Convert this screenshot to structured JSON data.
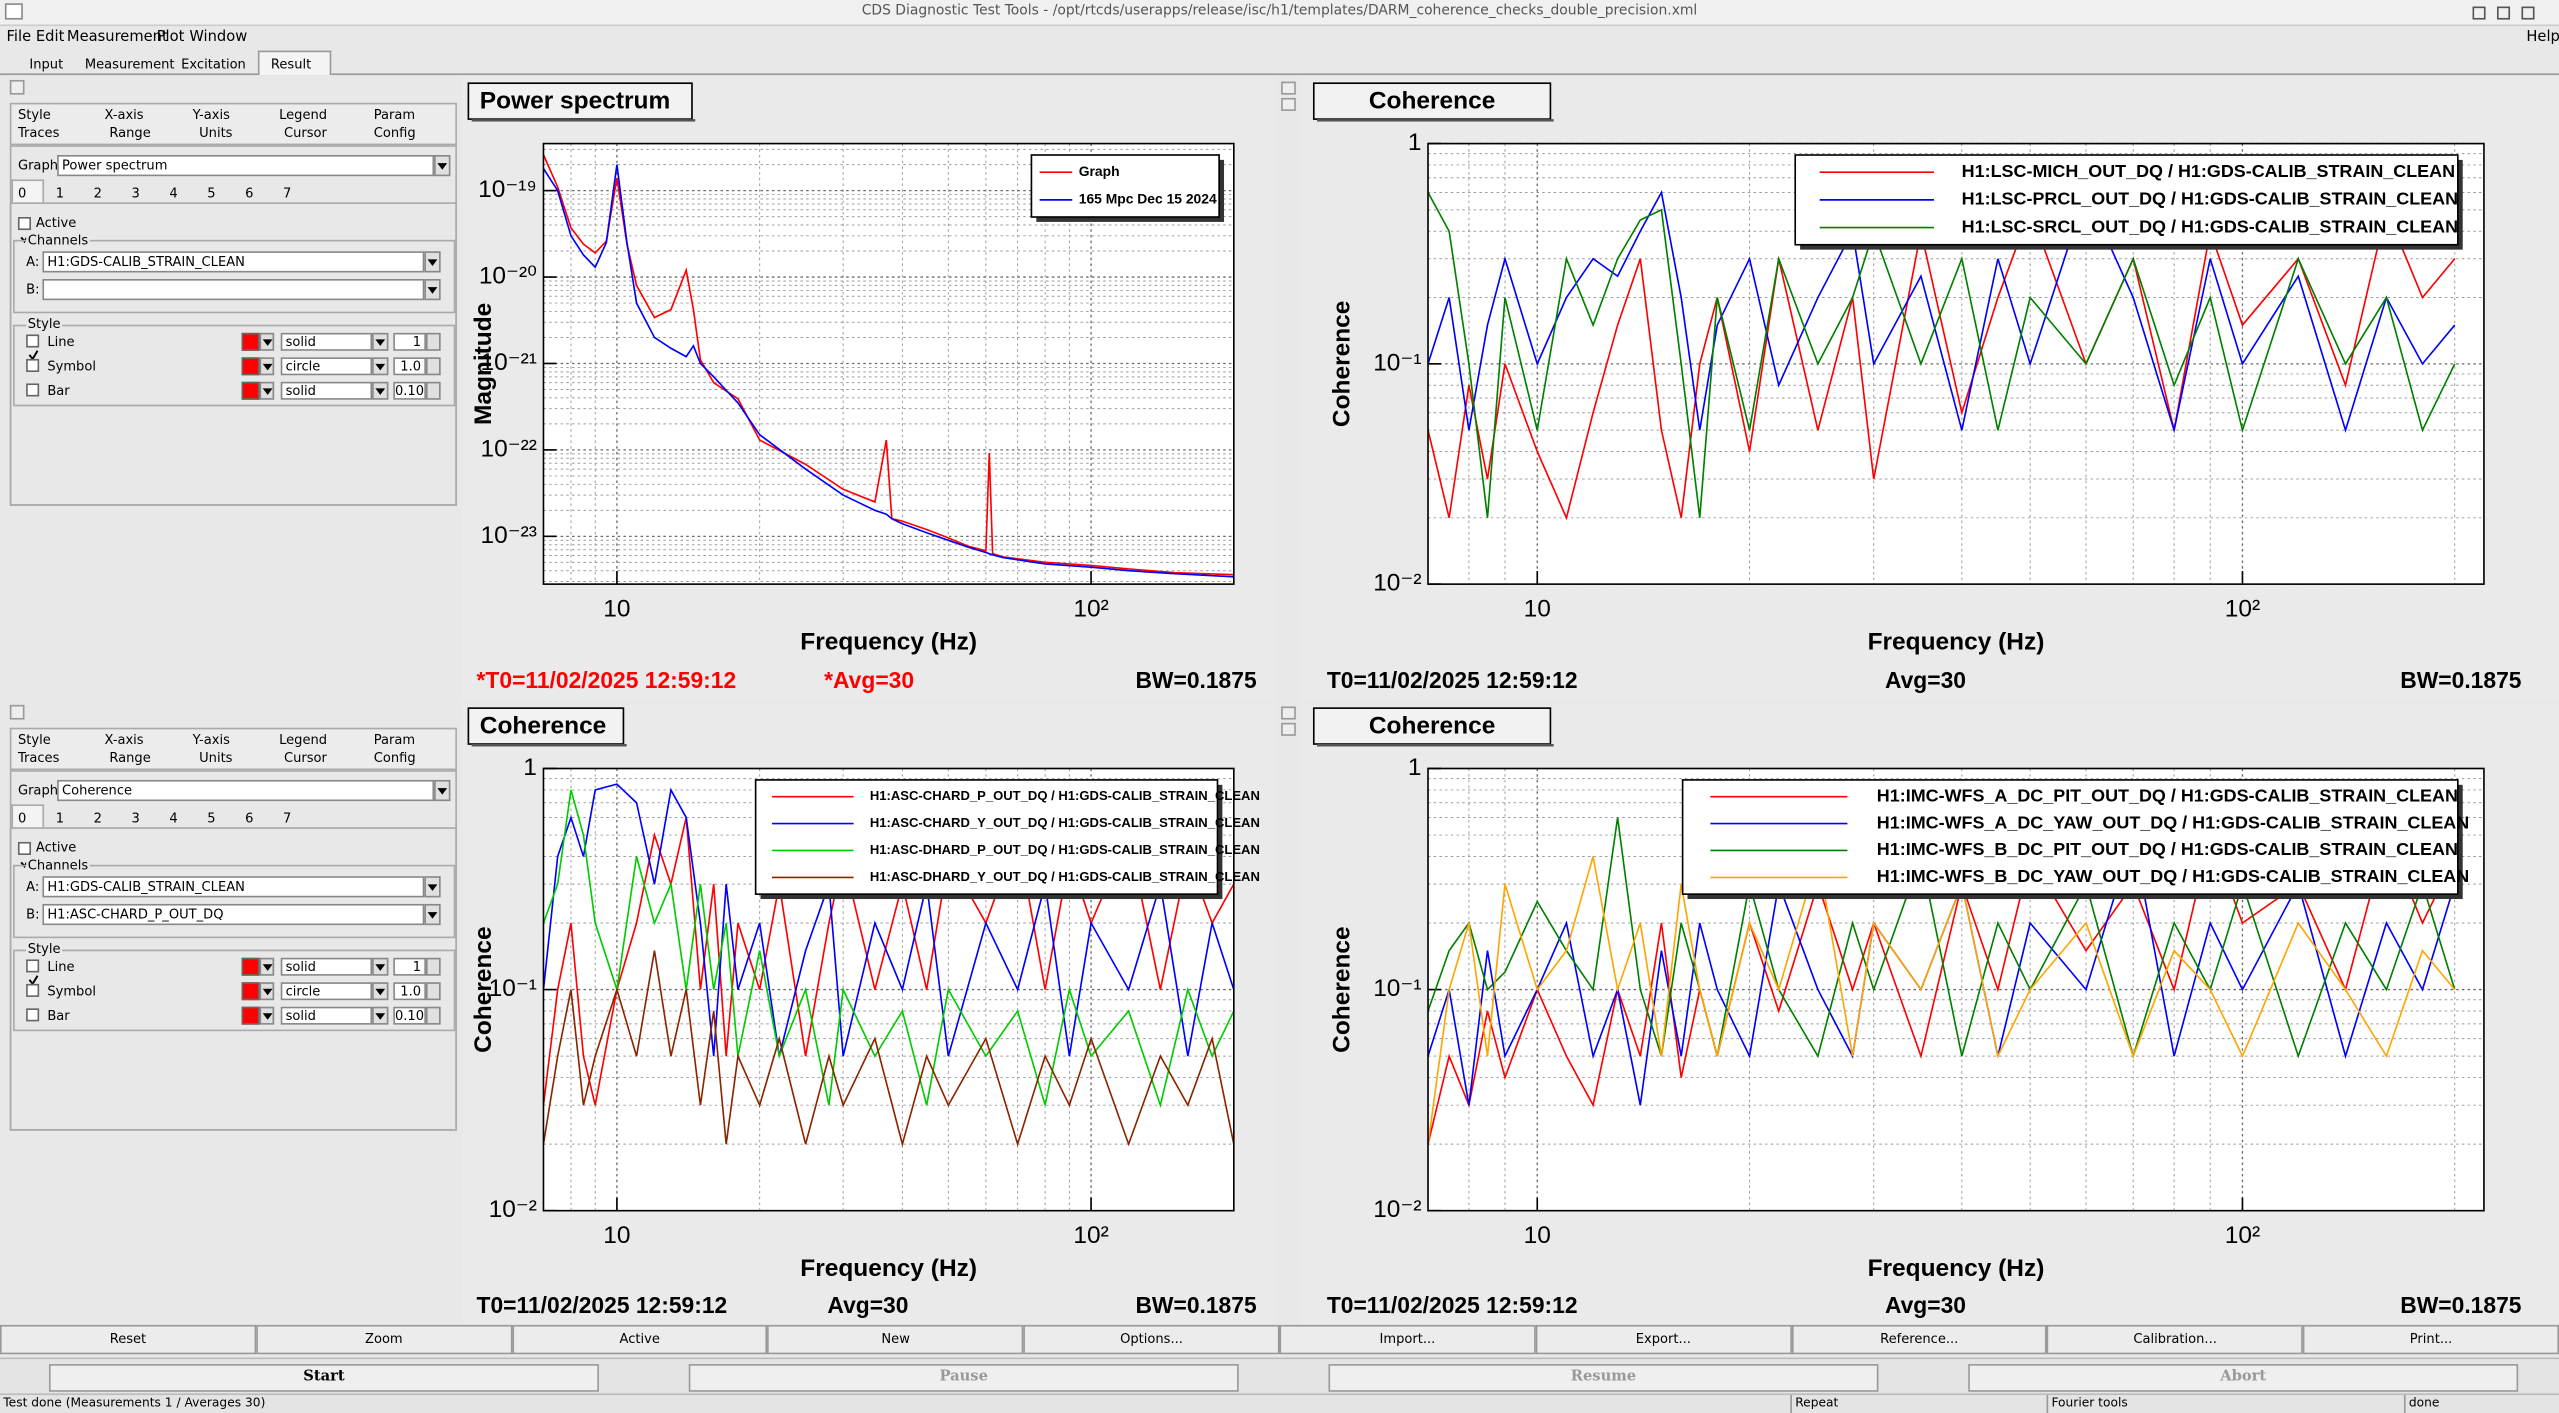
{
  "window_title": "CDS Diagnostic Test Tools - /opt/rtcds/userapps/release/isc/h1/templates/DARM_coherence_checks_double_precision.xml",
  "menu": [
    "File",
    "Edit",
    "Measurement",
    "Plot",
    "Window"
  ],
  "help_menu": "Help",
  "main_tabs": [
    "Input",
    "Measurement",
    "Excitation",
    "Result"
  ],
  "option_panels": [
    {
      "tabs_top": [
        "Style",
        "X-axis",
        "Y-axis",
        "Legend",
        "Param"
      ],
      "tabs_bottom": [
        "Traces",
        "Range",
        "Units",
        "Cursor",
        "Config"
      ],
      "graph_label": "Graph:",
      "graph": "Power spectrum",
      "trace_tabs": [
        0,
        1,
        2,
        3,
        4,
        5,
        6,
        7
      ],
      "active": "Active",
      "channels": "Channels",
      "channel_a_label": "A:",
      "channel_a": "H1:GDS-CALIB_STRAIN_CLEAN",
      "channel_b_label": "B:",
      "style_group": "Style",
      "style_rows": [
        {
          "name": "Line",
          "style": "solid",
          "size": "1",
          "checked": true
        },
        {
          "name": "Symbol",
          "style": "circle",
          "size": "1.0",
          "checked": false
        },
        {
          "name": "Bar",
          "style": "solid",
          "size": "0.10",
          "checked": false
        }
      ]
    },
    {
      "tabs_top": [
        "Style",
        "X-axis",
        "Y-axis",
        "Legend",
        "Param"
      ],
      "tabs_bottom": [
        "Traces",
        "Range",
        "Units",
        "Cursor",
        "Config"
      ],
      "graph_label": "Graph:",
      "graph": "Coherence",
      "trace_tabs": [
        0,
        1,
        2,
        3,
        4,
        5,
        6,
        7
      ],
      "active": "Active",
      "channels": "Channels",
      "channel_a_label": "A:",
      "channel_a": "H1:GDS-CALIB_STRAIN_CLEAN",
      "channel_b_label": "B:",
      "channel_b": "H1:ASC-CHARD_P_OUT_DQ",
      "style_group": "Style",
      "style_rows": [
        {
          "name": "Line",
          "style": "solid",
          "size": "1",
          "checked": true
        },
        {
          "name": "Symbol",
          "style": "circle",
          "size": "1.0",
          "checked": false
        },
        {
          "name": "Bar",
          "style": "solid",
          "size": "0.10",
          "checked": false
        }
      ]
    }
  ],
  "chart_data": [
    {
      "type": "line",
      "title": "Power spectrum",
      "xlabel": "Frequency (Hz)",
      "ylabel": "Magnitude",
      "xlog": true,
      "ylog": true,
      "grid": true,
      "legend": "upper right",
      "xlim": [
        7,
        200
      ],
      "ylim": [
        2.8e-24,
        3.5e-19
      ],
      "xticks": [
        10,
        {
          "value": 100,
          "label": "10²"
        }
      ],
      "yticks": [
        {
          "value": 1e-19,
          "label": "10⁻¹⁹"
        },
        {
          "value": 1e-20,
          "label": "10⁻²⁰"
        },
        {
          "value": 1e-21,
          "label": "10⁻²¹"
        },
        {
          "value": 1e-22,
          "label": "10⁻²²"
        },
        {
          "value": 1e-23,
          "label": "10⁻²³"
        }
      ],
      "x": [
        7,
        7.5,
        8,
        8.5,
        9,
        9.5,
        10,
        10.5,
        11,
        12,
        13,
        14,
        14.5,
        15,
        16,
        18,
        20,
        25,
        30,
        35,
        37,
        38,
        40,
        45,
        50,
        55,
        60,
        61,
        62,
        65,
        80,
        100,
        120,
        150,
        200
      ],
      "series": [
        {
          "name": "Graph",
          "color": "#ff0000",
          "values": [
            2.6e-19,
            1.1e-19,
            3.7e-20,
            2.4e-20,
            1.9e-20,
            2.6e-20,
            1.4e-19,
            2.4e-20,
            8e-21,
            3.4e-21,
            4.2e-21,
            1.2e-20,
            4.2e-21,
            1.1e-21,
            6e-22,
            3.9e-22,
            1.3e-22,
            6.8e-23,
            3.5e-23,
            2.5e-23,
            1.3e-22,
            1.6e-23,
            1.5e-23,
            1.2e-23,
            9.6e-24,
            7.7e-24,
            6.8e-24,
            9.2e-23,
            6.3e-24,
            5.8e-24,
            5e-24,
            4.6e-24,
            4.2e-24,
            3.8e-24,
            3.6e-24
          ]
        },
        {
          "name": "165 Mpc Dec 15 2024",
          "color": "#0000ff",
          "values": [
            1.8e-19,
            1e-19,
            3e-20,
            1.8e-20,
            1.3e-20,
            2.5e-20,
            2e-19,
            2.5e-20,
            5e-21,
            2e-21,
            1.5e-21,
            1.2e-21,
            1.6e-21,
            1e-21,
            7e-22,
            3.5e-22,
            1.5e-22,
            6e-23,
            3e-23,
            2e-23,
            1.8e-23,
            1.6e-23,
            1.4e-23,
            1.1e-23,
            9e-24,
            7.5e-24,
            6.5e-24,
            6.3e-24,
            6.1e-24,
            5.7e-24,
            4.8e-24,
            4.4e-24,
            4e-24,
            3.7e-24,
            3.4e-24
          ]
        }
      ],
      "footer_t0": "*T0=11/02/2025 12:59:12",
      "footer_avg": "*Avg=30",
      "footer_bw": "BW=0.1875",
      "footer_color": "#ff0000"
    },
    {
      "type": "line",
      "title": "Coherence",
      "xlabel": "Frequency (Hz)",
      "ylabel": "Coherence",
      "xlog": true,
      "ylog": true,
      "grid": true,
      "legend": "upper right",
      "xlim": [
        7,
        220
      ],
      "ylim": [
        0.01,
        1
      ],
      "xticks": [
        10,
        {
          "value": 100,
          "label": "10²"
        }
      ],
      "yticks": [
        {
          "value": 0.01,
          "label": "10⁻²"
        },
        {
          "value": 0.1,
          "label": "10⁻¹"
        },
        1
      ],
      "x": [
        7,
        7.5,
        8,
        8.5,
        9,
        10,
        11,
        12,
        13,
        14,
        15,
        16,
        17,
        18,
        20,
        22,
        25,
        28,
        30,
        35,
        40,
        45,
        50,
        60,
        70,
        80,
        90,
        100,
        120,
        140,
        160,
        180,
        200
      ],
      "series": [
        {
          "name": "H1:LSC-MICH_OUT_DQ / H1:GDS-CALIB_STRAIN_CLEAN",
          "color": "#ff0000",
          "values": [
            0.05,
            0.02,
            0.08,
            0.03,
            0.1,
            0.04,
            0.02,
            0.06,
            0.15,
            0.3,
            0.05,
            0.02,
            0.1,
            0.2,
            0.04,
            0.3,
            0.05,
            0.2,
            0.03,
            0.4,
            0.06,
            0.2,
            0.5,
            0.1,
            0.3,
            0.05,
            0.4,
            0.15,
            0.3,
            0.08,
            0.5,
            0.2,
            0.3
          ]
        },
        {
          "name": "H1:LSC-PRCL_OUT_DQ / H1:GDS-CALIB_STRAIN_CLEAN",
          "color": "#0000ff",
          "values": [
            0.1,
            0.2,
            0.05,
            0.15,
            0.3,
            0.1,
            0.2,
            0.3,
            0.25,
            0.4,
            0.6,
            0.2,
            0.05,
            0.15,
            0.3,
            0.08,
            0.2,
            0.4,
            0.1,
            0.25,
            0.05,
            0.3,
            0.1,
            0.6,
            0.2,
            0.05,
            0.3,
            0.1,
            0.25,
            0.05,
            0.2,
            0.1,
            0.15
          ]
        },
        {
          "name": "H1:LSC-SRCL_OUT_DQ / H1:GDS-CALIB_STRAIN_CLEAN",
          "color": "#008000",
          "values": [
            0.6,
            0.4,
            0.1,
            0.02,
            0.2,
            0.05,
            0.3,
            0.15,
            0.3,
            0.45,
            0.5,
            0.1,
            0.02,
            0.2,
            0.05,
            0.3,
            0.1,
            0.2,
            0.4,
            0.1,
            0.3,
            0.05,
            0.2,
            0.1,
            0.3,
            0.08,
            0.2,
            0.05,
            0.3,
            0.1,
            0.2,
            0.05,
            0.1
          ]
        }
      ],
      "footer_t0": "T0=11/02/2025 12:59:12",
      "footer_avg": "Avg=30",
      "footer_bw": "BW=0.1875"
    },
    {
      "type": "line",
      "title": "Coherence",
      "xlabel": "Frequency (Hz)",
      "ylabel": "Coherence",
      "xlog": true,
      "ylog": true,
      "grid": true,
      "legend": "upper right",
      "xlim": [
        7,
        200
      ],
      "ylim": [
        0.01,
        1
      ],
      "xticks": [
        10,
        {
          "value": 100,
          "label": "10²"
        }
      ],
      "yticks": [
        {
          "value": 0.01,
          "label": "10⁻²"
        },
        {
          "value": 0.1,
          "label": "10⁻¹"
        },
        1
      ],
      "x": [
        7,
        7.5,
        8,
        8.5,
        9,
        10,
        11,
        12,
        13,
        14,
        15,
        16,
        17,
        18,
        20,
        22,
        25,
        28,
        30,
        35,
        40,
        45,
        50,
        60,
        70,
        80,
        90,
        100,
        120,
        140,
        160,
        180,
        200
      ],
      "series": [
        {
          "name": "H1:ASC-CHARD_P_OUT_DQ / H1:GDS-CALIB_STRAIN_CLEAN",
          "color": "#ff0000",
          "values": [
            0.03,
            0.1,
            0.2,
            0.05,
            0.03,
            0.1,
            0.2,
            0.5,
            0.3,
            0.6,
            0.1,
            0.3,
            0.05,
            0.2,
            0.1,
            0.3,
            0.05,
            0.2,
            0.4,
            0.1,
            0.3,
            0.1,
            0.4,
            0.2,
            0.5,
            0.1,
            0.4,
            0.2,
            0.5,
            0.1,
            0.4,
            0.2,
            0.3
          ]
        },
        {
          "name": "H1:ASC-CHARD_Y_OUT_DQ / H1:GDS-CALIB_STRAIN_CLEAN",
          "color": "#0000ff",
          "values": [
            0.1,
            0.4,
            0.6,
            0.4,
            0.8,
            0.85,
            0.7,
            0.3,
            0.8,
            0.6,
            0.2,
            0.05,
            0.3,
            0.1,
            0.2,
            0.05,
            0.15,
            0.3,
            0.05,
            0.2,
            0.1,
            0.3,
            0.05,
            0.2,
            0.1,
            0.3,
            0.05,
            0.2,
            0.1,
            0.3,
            0.05,
            0.2,
            0.1
          ]
        },
        {
          "name": "H1:ASC-DHARD_P_OUT_DQ / H1:GDS-CALIB_STRAIN_CLEAN",
          "color": "#00cc00",
          "values": [
            0.2,
            0.3,
            0.8,
            0.5,
            0.2,
            0.1,
            0.4,
            0.2,
            0.3,
            0.1,
            0.3,
            0.1,
            0.2,
            0.05,
            0.15,
            0.05,
            0.1,
            0.03,
            0.1,
            0.05,
            0.08,
            0.03,
            0.1,
            0.05,
            0.08,
            0.03,
            0.1,
            0.05,
            0.08,
            0.03,
            0.1,
            0.05,
            0.08
          ]
        },
        {
          "name": "H1:ASC-DHARD_Y_OUT_DQ / H1:GDS-CALIB_STRAIN_CLEAN",
          "color": "#8b2500",
          "values": [
            0.02,
            0.05,
            0.1,
            0.03,
            0.05,
            0.1,
            0.05,
            0.15,
            0.05,
            0.1,
            0.03,
            0.08,
            0.02,
            0.05,
            0.03,
            0.06,
            0.02,
            0.05,
            0.03,
            0.06,
            0.02,
            0.05,
            0.03,
            0.06,
            0.02,
            0.05,
            0.03,
            0.06,
            0.02,
            0.05,
            0.03,
            0.06,
            0.02
          ]
        }
      ],
      "footer_t0": "T0=11/02/2025 12:59:12",
      "footer_avg": "Avg=30",
      "footer_bw": "BW=0.1875"
    },
    {
      "type": "line",
      "title": "Coherence",
      "xlabel": "Frequency (Hz)",
      "ylabel": "Coherence",
      "xlog": true,
      "ylog": true,
      "grid": true,
      "legend": "upper right",
      "xlim": [
        7,
        220
      ],
      "ylim": [
        0.01,
        1
      ],
      "xticks": [
        10,
        {
          "value": 100,
          "label": "10²"
        }
      ],
      "yticks": [
        {
          "value": 0.01,
          "label": "10⁻²"
        },
        {
          "value": 0.1,
          "label": "10⁻¹"
        },
        1
      ],
      "x": [
        7,
        7.5,
        8,
        8.5,
        9,
        10,
        11,
        12,
        13,
        14,
        15,
        16,
        17,
        18,
        20,
        22,
        25,
        28,
        30,
        35,
        40,
        45,
        50,
        60,
        70,
        80,
        90,
        100,
        120,
        140,
        160,
        180,
        200
      ],
      "series": [
        {
          "name": "H1:IMC-WFS_A_DC_PIT_OUT_DQ / H1:GDS-CALIB_STRAIN_CLEAN",
          "color": "#ff0000",
          "values": [
            0.02,
            0.05,
            0.03,
            0.08,
            0.04,
            0.1,
            0.05,
            0.03,
            0.1,
            0.05,
            0.2,
            0.04,
            0.1,
            0.05,
            0.2,
            0.08,
            0.3,
            0.1,
            0.2,
            0.05,
            0.3,
            0.1,
            0.4,
            0.15,
            0.3,
            0.1,
            0.5,
            0.2,
            0.3,
            0.1,
            0.5,
            0.2,
            0.4
          ]
        },
        {
          "name": "H1:IMC-WFS_A_DC_YAW_OUT_DQ / H1:GDS-CALIB_STRAIN_CLEAN",
          "color": "#0000ff",
          "values": [
            0.05,
            0.1,
            0.03,
            0.15,
            0.05,
            0.1,
            0.2,
            0.05,
            0.1,
            0.03,
            0.15,
            0.05,
            0.2,
            0.1,
            0.05,
            0.3,
            0.1,
            0.05,
            0.2,
            0.1,
            0.3,
            0.05,
            0.2,
            0.1,
            0.5,
            0.05,
            0.2,
            0.1,
            0.3,
            0.05,
            0.2,
            0.1,
            0.3
          ]
        },
        {
          "name": "H1:IMC-WFS_B_DC_PIT_OUT_DQ / H1:GDS-CALIB_STRAIN_CLEAN",
          "color": "#008000",
          "values": [
            0.08,
            0.15,
            0.2,
            0.1,
            0.12,
            0.25,
            0.15,
            0.1,
            0.6,
            0.1,
            0.05,
            0.2,
            0.1,
            0.05,
            0.3,
            0.1,
            0.05,
            0.2,
            0.1,
            0.4,
            0.05,
            0.2,
            0.1,
            0.3,
            0.05,
            0.2,
            0.1,
            0.3,
            0.05,
            0.2,
            0.1,
            0.3,
            0.1
          ]
        },
        {
          "name": "H1:IMC-WFS_B_DC_YAW_OUT_DQ / H1:GDS-CALIB_STRAIN_CLEAN",
          "color": "#ffa500",
          "values": [
            0.02,
            0.1,
            0.2,
            0.05,
            0.3,
            0.1,
            0.15,
            0.4,
            0.1,
            0.2,
            0.05,
            0.3,
            0.1,
            0.05,
            0.2,
            0.1,
            0.4,
            0.05,
            0.2,
            0.1,
            0.3,
            0.05,
            0.1,
            0.2,
            0.05,
            0.15,
            0.1,
            0.05,
            0.2,
            0.1,
            0.05,
            0.15,
            0.1
          ]
        }
      ],
      "footer_t0": "T0=11/02/2025 12:59:12",
      "footer_avg": "Avg=30",
      "footer_bw": "BW=0.1875"
    }
  ],
  "buttons": [
    "Reset",
    "Zoom",
    "Active",
    "New",
    "Options...",
    "Import...",
    "Export...",
    "Reference...",
    "Calibration...",
    "Print..."
  ],
  "run_buttons": [
    {
      "label": "Start",
      "enabled": true
    },
    {
      "label": "Pause",
      "enabled": false
    },
    {
      "label": "Resume",
      "enabled": false
    },
    {
      "label": "Abort",
      "enabled": false
    }
  ],
  "status": [
    "Test done (Measurements 1 / Averages 30)",
    "Repeat",
    "Fourier tools",
    "done"
  ]
}
